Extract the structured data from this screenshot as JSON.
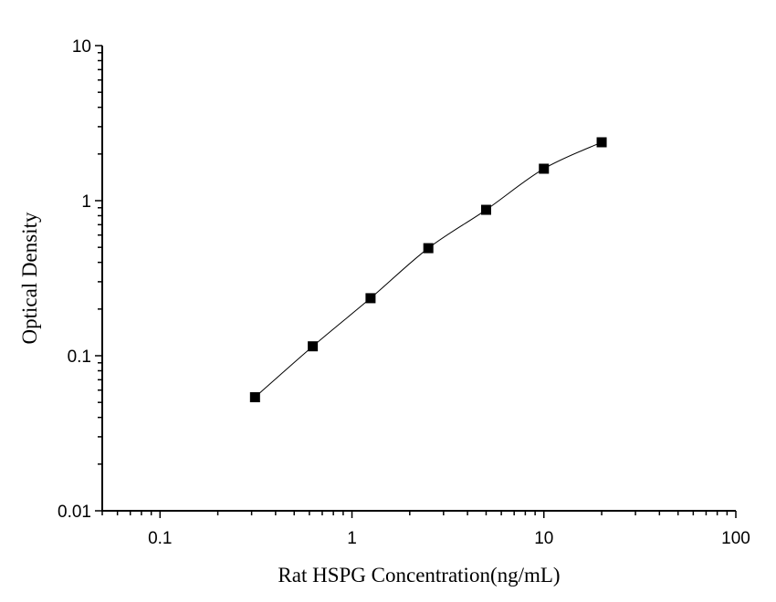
{
  "chart_data": {
    "type": "scatter",
    "title": "",
    "xlabel": "Rat HSPG Concentration(ng/mL)",
    "ylabel": "Optical Density",
    "xscale": "log",
    "yscale": "log",
    "xlim": [
      0.05,
      100
    ],
    "ylim": [
      0.01,
      10
    ],
    "xticks": [
      0.1,
      1,
      10,
      100
    ],
    "xtick_labels": [
      "0.1",
      "1",
      "10",
      "100"
    ],
    "yticks": [
      0.01,
      0.1,
      1,
      10
    ],
    "ytick_labels": [
      "0.01",
      "0.1",
      "1",
      "10"
    ],
    "grid": false,
    "marker": "square",
    "color": "#000000",
    "fit_curve": true,
    "series": [
      {
        "x": [
          0.3125,
          0.625,
          1.25,
          2.5,
          5,
          10,
          20
        ],
        "y": [
          0.054,
          0.115,
          0.235,
          0.494,
          0.873,
          1.607,
          2.38
        ]
      }
    ]
  }
}
